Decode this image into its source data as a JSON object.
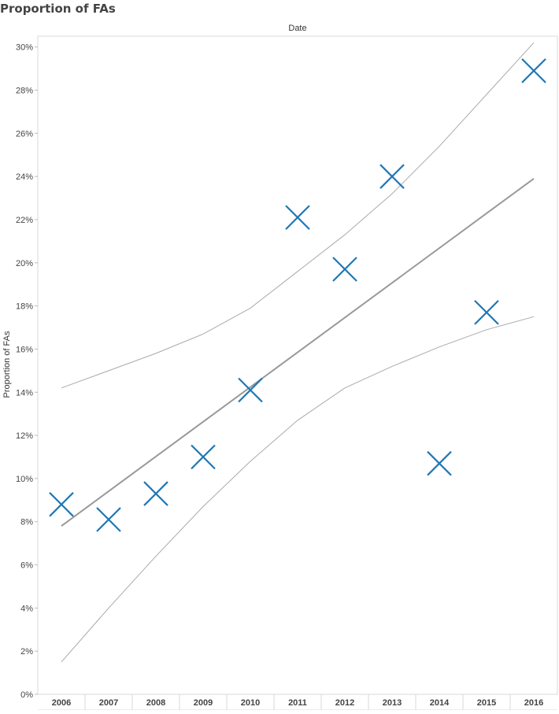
{
  "page": {
    "title": "Proportion of FAs"
  },
  "chart_data": {
    "type": "scatter",
    "title": "Proportion of FAs",
    "column_header": "Date",
    "xlabel": "",
    "ylabel": "Proportion of FAs",
    "categories": [
      "2006",
      "2007",
      "2008",
      "2009",
      "2010",
      "2011",
      "2012",
      "2013",
      "2014",
      "2015",
      "2016"
    ],
    "series": [
      {
        "values": [
          8.8,
          8.1,
          9.3,
          11.0,
          14.1,
          22.1,
          19.7,
          24.0,
          10.7,
          17.7,
          28.9
        ]
      }
    ],
    "y_ticks": [
      "0%",
      "2%",
      "4%",
      "6%",
      "8%",
      "10%",
      "12%",
      "14%",
      "16%",
      "18%",
      "20%",
      "22%",
      "24%",
      "26%",
      "28%",
      "30%"
    ],
    "ylim": [
      0,
      30.5
    ],
    "grid": false,
    "marker": "x",
    "marker_color": "#1f77b4",
    "trend_line": {
      "type": "linear",
      "start_value": 7.8,
      "end_value": 23.9,
      "color": "#999999"
    },
    "confidence_bands": {
      "upper": [
        14.2,
        15.0,
        15.8,
        16.7,
        17.9,
        19.6,
        21.3,
        23.2,
        25.4,
        27.8,
        30.2
      ],
      "lower": [
        1.5,
        4.0,
        6.4,
        8.7,
        10.8,
        12.7,
        14.2,
        15.2,
        16.1,
        16.9,
        17.5
      ],
      "color": "#aaaaaa"
    }
  }
}
